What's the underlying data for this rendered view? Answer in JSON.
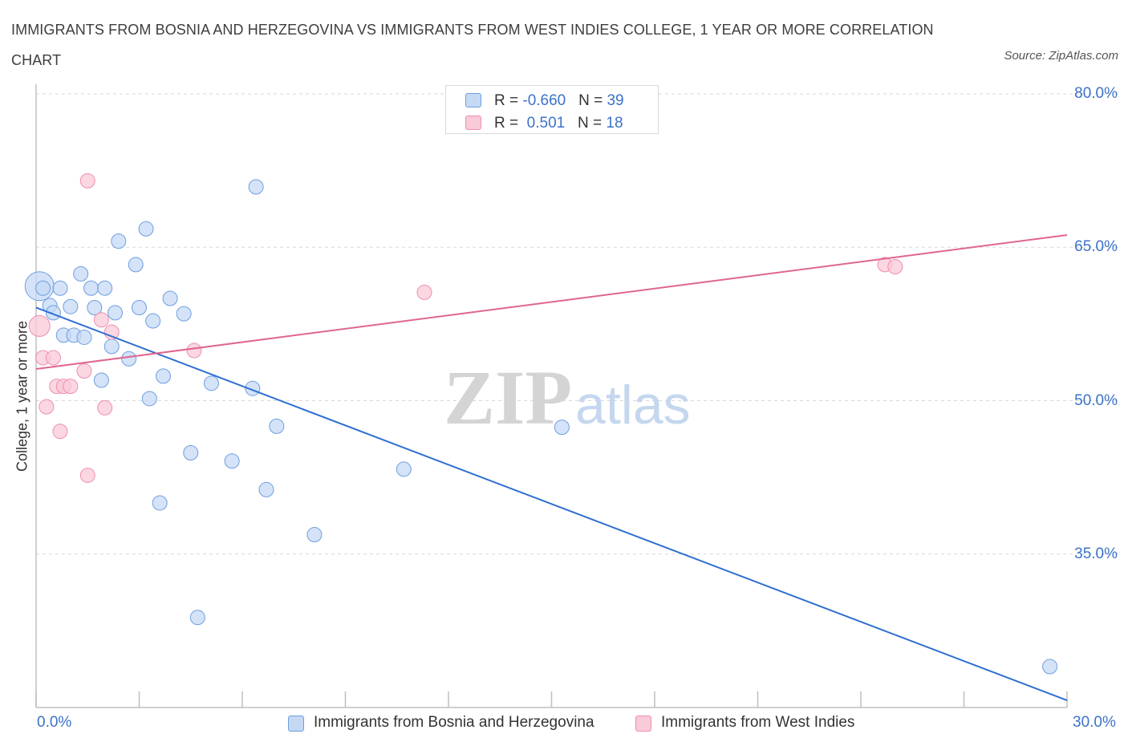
{
  "title": "IMMIGRANTS FROM BOSNIA AND HERZEGOVINA VS IMMIGRANTS FROM WEST INDIES COLLEGE, 1 YEAR OR MORE CORRELATION CHART",
  "source": "Source: ZipAtlas.com",
  "watermark": {
    "zip": "ZIP",
    "atlas": "atlas"
  },
  "legend_top": [
    {
      "r_label": "R = ",
      "r_value": "-0.660",
      "n_label": "N = ",
      "n_value": "39"
    },
    {
      "r_label": "R = ",
      "r_value": " 0.501",
      "n_label": "N = ",
      "n_value": "18"
    }
  ],
  "colors": {
    "bosnia_fill": "#c5d9f5",
    "bosnia_stroke": "#6f9ee0",
    "bosnia_line": "#2f6fd1",
    "westindies_fill": "#f9cad8",
    "westindies_stroke": "#ee8fae",
    "westindies_line": "#e0668f",
    "tick_text": "#3b72c8",
    "grid": "#d8d8d8"
  },
  "chart_data": {
    "type": "scatter",
    "title": "IMMIGRANTS FROM BOSNIA AND HERZEGOVINA VS IMMIGRANTS FROM WEST INDIES COLLEGE, 1 YEAR OR MORE CORRELATION CHART",
    "xlabel": "",
    "ylabel": "College, 1 year or more",
    "xlim": [
      0,
      30
    ],
    "ylim": [
      20.0,
      80.0
    ],
    "x_tick_labels": [
      "0.0%",
      "30.0%"
    ],
    "y_ticks": [
      35,
      50,
      65,
      80
    ],
    "y_tick_labels": [
      "35.0%",
      "50.0%",
      "65.0%",
      "80.0%"
    ],
    "grid": "horizontal dashed",
    "legend_position": "bottom",
    "series": [
      {
        "name": "Immigrants from Bosnia and Herzegovina",
        "R": -0.66,
        "N": 39,
        "trend": [
          [
            0,
            59.1
          ],
          [
            30,
            20.7
          ]
        ],
        "points": [
          [
            0.1,
            61.2,
            18
          ],
          [
            0.2,
            61.0,
            9
          ],
          [
            0.4,
            59.3,
            9
          ],
          [
            0.5,
            58.6,
            9
          ],
          [
            0.7,
            61.0,
            9
          ],
          [
            0.8,
            56.4,
            9
          ],
          [
            1.0,
            59.2,
            9
          ],
          [
            1.1,
            56.4,
            9
          ],
          [
            1.3,
            62.4,
            9
          ],
          [
            1.4,
            56.2,
            9
          ],
          [
            1.6,
            61.0,
            9
          ],
          [
            1.7,
            59.1,
            9
          ],
          [
            1.9,
            52.0,
            9
          ],
          [
            2.0,
            61.0,
            9
          ],
          [
            2.2,
            55.3,
            9
          ],
          [
            2.3,
            58.6,
            9
          ],
          [
            2.4,
            65.6,
            9
          ],
          [
            2.7,
            54.1,
            9
          ],
          [
            2.9,
            63.3,
            9
          ],
          [
            3.0,
            59.1,
            9
          ],
          [
            3.2,
            66.8,
            9
          ],
          [
            3.3,
            50.2,
            9
          ],
          [
            3.4,
            57.8,
            9
          ],
          [
            3.6,
            40.0,
            9
          ],
          [
            3.7,
            52.4,
            9
          ],
          [
            3.9,
            60.0,
            9
          ],
          [
            4.3,
            58.5,
            9
          ],
          [
            4.5,
            44.9,
            9
          ],
          [
            4.7,
            28.8,
            9
          ],
          [
            5.1,
            51.7,
            9
          ],
          [
            5.7,
            44.1,
            9
          ],
          [
            6.3,
            51.2,
            9
          ],
          [
            6.4,
            70.9,
            9
          ],
          [
            6.7,
            41.3,
            9
          ],
          [
            7.0,
            47.5,
            9
          ],
          [
            8.1,
            36.9,
            9
          ],
          [
            10.7,
            43.3,
            9
          ],
          [
            15.3,
            47.4,
            9
          ],
          [
            29.5,
            24.0,
            9
          ]
        ]
      },
      {
        "name": "Immigrants from West Indies",
        "R": 0.501,
        "N": 18,
        "trend": [
          [
            0,
            53.1
          ],
          [
            30,
            66.2
          ]
        ],
        "points": [
          [
            0.1,
            57.3,
            13
          ],
          [
            0.2,
            54.2,
            9
          ],
          [
            0.3,
            49.4,
            9
          ],
          [
            0.5,
            54.2,
            9
          ],
          [
            0.6,
            51.4,
            9
          ],
          [
            0.7,
            47.0,
            9
          ],
          [
            0.8,
            51.4,
            9
          ],
          [
            1.0,
            51.4,
            9
          ],
          [
            1.4,
            52.9,
            9
          ],
          [
            1.5,
            71.5,
            9
          ],
          [
            1.5,
            42.7,
            9
          ],
          [
            1.9,
            57.9,
            9
          ],
          [
            2.0,
            49.3,
            9
          ],
          [
            2.2,
            56.7,
            9
          ],
          [
            4.6,
            54.9,
            9
          ],
          [
            11.3,
            60.6,
            9
          ],
          [
            24.7,
            63.3,
            9
          ],
          [
            25.0,
            63.1,
            9
          ]
        ]
      }
    ]
  }
}
